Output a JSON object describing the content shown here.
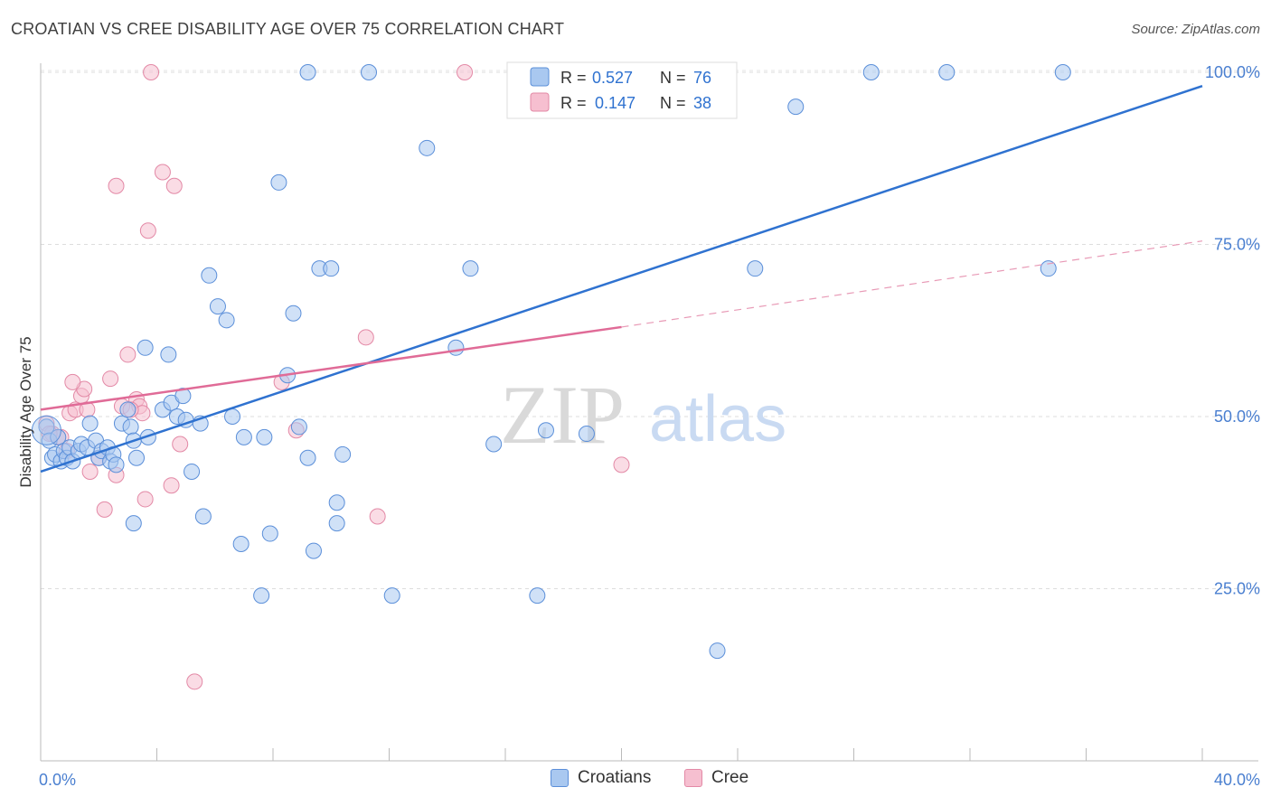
{
  "title": "CROATIAN VS CREE DISABILITY AGE OVER 75 CORRELATION CHART",
  "source": "Source: ZipAtlas.com",
  "watermark": {
    "zip": "ZIP",
    "atlas": "atlas"
  },
  "colors": {
    "blue_fill": "#a9c8f0",
    "blue_stroke": "#5b8fd9",
    "blue_line": "#2f72d0",
    "pink_fill": "#f6bfd0",
    "pink_stroke": "#e389a6",
    "pink_line": "#e06b97",
    "axis_text": "#4a7fd0",
    "grid": "#dddddd"
  },
  "stats_legend": [
    {
      "r_label": "R =",
      "r_value": "0.527",
      "n_label": "N =",
      "n_value": "76",
      "series": "Croatians"
    },
    {
      "r_label": "R =",
      "r_value": "0.147",
      "n_label": "N =",
      "n_value": "38",
      "series": "Cree"
    }
  ],
  "bottom_legend": [
    "Croatians",
    "Cree"
  ],
  "chart_data": {
    "type": "scatter",
    "title": "CROATIAN VS CREE DISABILITY AGE OVER 75 CORRELATION CHART",
    "xlabel": "",
    "ylabel": "Disability Age Over 75",
    "xlim": [
      0,
      40
    ],
    "ylim": [
      0,
      103
    ],
    "x_tick_labels": [
      {
        "value": 0,
        "label": "0.0%"
      },
      {
        "value": 40,
        "label": "40.0%"
      }
    ],
    "y_tick_labels": [
      {
        "value": 25,
        "label": "25.0%"
      },
      {
        "value": 50,
        "label": "50.0%"
      },
      {
        "value": 75,
        "label": "75.0%"
      },
      {
        "value": 100,
        "label": "100.0%"
      }
    ],
    "grid": true,
    "legend_position": "top-center",
    "series": [
      {
        "name": "Croatians",
        "color": "#5b8fd9",
        "trend": {
          "x": [
            0,
            40
          ],
          "y": [
            42,
            98
          ],
          "style": "solid"
        },
        "points": [
          [
            0.2,
            48.5
          ],
          [
            0.3,
            46.5
          ],
          [
            0.4,
            44
          ],
          [
            0.5,
            44.5
          ],
          [
            0.6,
            47
          ],
          [
            0.7,
            43.5
          ],
          [
            0.8,
            45
          ],
          [
            0.9,
            44
          ],
          [
            1.0,
            45.5
          ],
          [
            1.1,
            43.5
          ],
          [
            1.3,
            45
          ],
          [
            1.4,
            46
          ],
          [
            1.6,
            45.5
          ],
          [
            1.7,
            49
          ],
          [
            1.9,
            46.5
          ],
          [
            2.0,
            44
          ],
          [
            2.1,
            45
          ],
          [
            2.3,
            45.5
          ],
          [
            2.4,
            43.5
          ],
          [
            2.5,
            44.5
          ],
          [
            2.6,
            43
          ],
          [
            2.8,
            49
          ],
          [
            3.0,
            51
          ],
          [
            3.1,
            48.5
          ],
          [
            3.2,
            46.5
          ],
          [
            3.3,
            44
          ],
          [
            3.6,
            60
          ],
          [
            3.7,
            47
          ],
          [
            4.2,
            51
          ],
          [
            4.4,
            59
          ],
          [
            4.5,
            52
          ],
          [
            4.7,
            50
          ],
          [
            4.9,
            53
          ],
          [
            5.0,
            49.5
          ],
          [
            5.2,
            42
          ],
          [
            5.5,
            49
          ],
          [
            5.8,
            70.5
          ],
          [
            6.1,
            66
          ],
          [
            6.4,
            64
          ],
          [
            6.6,
            50
          ],
          [
            7.0,
            47
          ],
          [
            7.6,
            24
          ],
          [
            7.9,
            33
          ],
          [
            8.2,
            84
          ],
          [
            8.5,
            56
          ],
          [
            8.7,
            65
          ],
          [
            8.9,
            48.5
          ],
          [
            9.2,
            44
          ],
          [
            9.6,
            71.5
          ],
          [
            10.0,
            71.5
          ],
          [
            10.2,
            37.5
          ],
          [
            10.4,
            44.5
          ],
          [
            11.3,
            100
          ],
          [
            12.1,
            24
          ],
          [
            13.3,
            89
          ],
          [
            14.3,
            60
          ],
          [
            14.8,
            71.5
          ],
          [
            15.6,
            46
          ],
          [
            17.1,
            24
          ],
          [
            17.4,
            48
          ],
          [
            18.8,
            47.5
          ],
          [
            21.6,
            100
          ],
          [
            26.0,
            95
          ],
          [
            23.3,
            16
          ],
          [
            24.6,
            71.5
          ],
          [
            28.6,
            100
          ],
          [
            31.2,
            100
          ],
          [
            34.7,
            71.5
          ],
          [
            35.2,
            100
          ],
          [
            3.2,
            34.5
          ],
          [
            5.6,
            35.5
          ],
          [
            6.9,
            31.5
          ],
          [
            9.4,
            30.5
          ],
          [
            10.2,
            34.5
          ],
          [
            9.2,
            100
          ],
          [
            7.7,
            47
          ]
        ]
      },
      {
        "name": "Cree",
        "color": "#e389a6",
        "trend": {
          "x": [
            0,
            20
          ],
          "y": [
            51,
            63
          ],
          "style": "solid",
          "extension": {
            "x": [
              20,
              40
            ],
            "y": [
              63,
              75.5
            ],
            "style": "dashed"
          }
        },
        "points": [
          [
            0.2,
            49
          ],
          [
            0.4,
            47.5
          ],
          [
            0.6,
            47
          ],
          [
            0.9,
            45
          ],
          [
            1.0,
            50.5
          ],
          [
            1.2,
            51
          ],
          [
            1.4,
            53
          ],
          [
            1.5,
            54
          ],
          [
            1.7,
            42
          ],
          [
            2.0,
            44
          ],
          [
            2.2,
            36.5
          ],
          [
            2.4,
            55.5
          ],
          [
            2.6,
            41.5
          ],
          [
            2.8,
            51.5
          ],
          [
            3.0,
            59
          ],
          [
            3.3,
            52.5
          ],
          [
            3.4,
            51.5
          ],
          [
            3.5,
            50.5
          ],
          [
            3.6,
            38
          ],
          [
            3.7,
            77
          ],
          [
            4.2,
            85.5
          ],
          [
            4.5,
            40
          ],
          [
            4.6,
            83.5
          ],
          [
            4.8,
            46
          ],
          [
            5.3,
            11.5
          ],
          [
            2.6,
            83.5
          ],
          [
            3.8,
            100
          ],
          [
            8.3,
            55
          ],
          [
            8.8,
            48
          ],
          [
            11.2,
            61.5
          ],
          [
            11.6,
            35.5
          ],
          [
            14.6,
            100
          ],
          [
            20.0,
            43
          ],
          [
            0.7,
            47
          ],
          [
            1.6,
            51
          ],
          [
            3.1,
            51
          ],
          [
            0.3,
            47.5
          ],
          [
            1.1,
            55
          ]
        ]
      }
    ]
  }
}
